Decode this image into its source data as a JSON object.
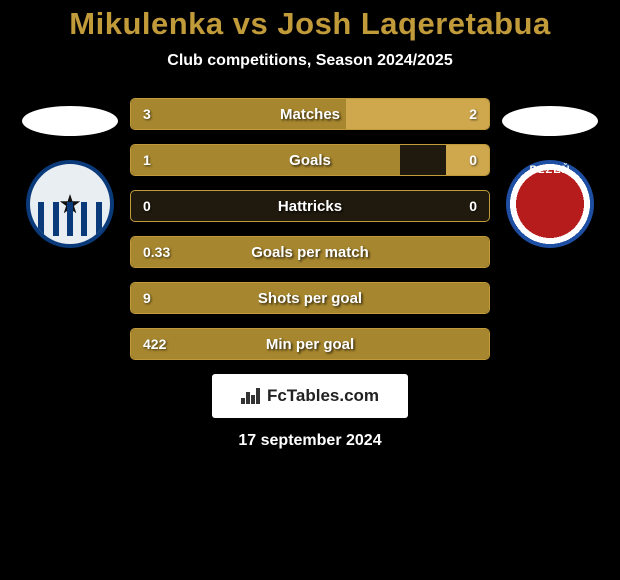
{
  "header": {
    "player1": "Mikulenka",
    "vs": "vs",
    "player2": "Josh Laqeretabua",
    "title_color": "#c19a3a",
    "subtitle": "Club competitions, Season 2024/2025"
  },
  "bar_style": {
    "border_color": "#c19a3a",
    "p1_fill": "#a6862e",
    "p2_fill": "#cfa84e",
    "neutral_bg": "#201a0e"
  },
  "stats": [
    {
      "label": "Matches",
      "p1_val": "3",
      "p2_val": "2",
      "p1_pct": 60,
      "p2_pct": 40
    },
    {
      "label": "Goals",
      "p1_val": "1",
      "p2_val": "0",
      "p1_pct": 75,
      "p2_pct": 12
    },
    {
      "label": "Hattricks",
      "p1_val": "0",
      "p2_val": "0",
      "p1_pct": 0,
      "p2_pct": 0
    },
    {
      "label": "Goals per match",
      "p1_val": "0.33",
      "p2_val": "",
      "p1_pct": 100,
      "p2_pct": 0
    },
    {
      "label": "Shots per goal",
      "p1_val": "9",
      "p2_val": "",
      "p1_pct": 100,
      "p2_pct": 0
    },
    {
      "label": "Min per goal",
      "p1_val": "422",
      "p2_val": "",
      "p1_pct": 100,
      "p2_pct": 0
    }
  ],
  "brand": {
    "name": "FcTables.com"
  },
  "date": "17 september 2024",
  "club_left": {
    "name_hint": "SK Sigma Olomouc"
  },
  "club_right": {
    "name_hint": "FC Viktoria Plzen",
    "top_text": "PLZEŇ"
  }
}
